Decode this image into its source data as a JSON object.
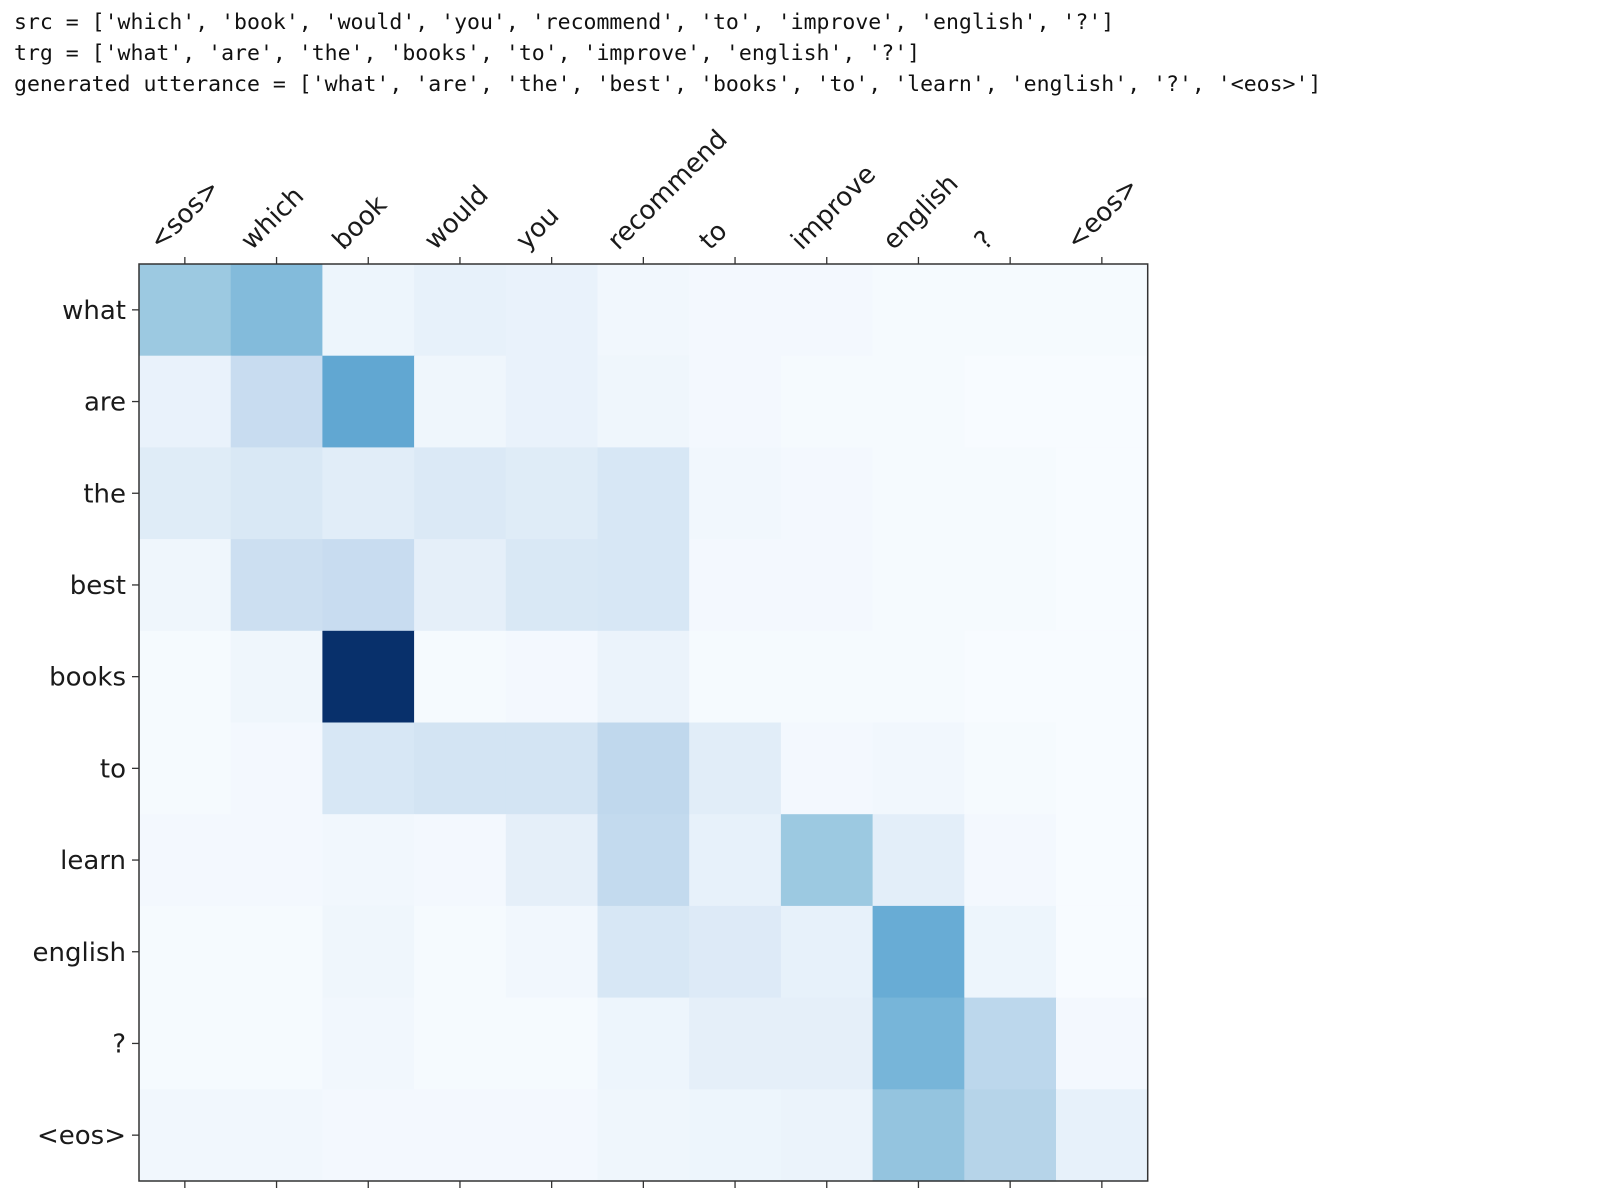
{
  "output": {
    "src_line": "src = ['which', 'book', 'would', 'you', 'recommend', 'to', 'improve', 'english', '?']",
    "trg_line": "trg = ['what', 'are', 'the', 'books', 'to', 'improve', 'english', '?']",
    "generated_line": "generated utterance = ['what', 'are', 'the', 'best', 'books', 'to', 'learn', 'english', '?', '<eos>']"
  },
  "chart_data": {
    "type": "heatmap",
    "colormap": "Blues",
    "x_tick_labels": [
      "<sos>",
      "which",
      "book",
      "would",
      "you",
      "recommend",
      "to",
      "improve",
      "english",
      "?",
      "<eos>"
    ],
    "y_tick_labels": [
      "what",
      "are",
      "the",
      "best",
      "books",
      "to",
      "learn",
      "english",
      "?",
      "<eos>"
    ],
    "x_axis_position": "top",
    "values": [
      [
        0.38,
        0.44,
        0.05,
        0.08,
        0.07,
        0.03,
        0.02,
        0.02,
        0.01,
        0.01,
        0.01
      ],
      [
        0.07,
        0.24,
        0.53,
        0.04,
        0.07,
        0.04,
        0.02,
        0.01,
        0.01,
        0.0,
        0.0
      ],
      [
        0.12,
        0.15,
        0.11,
        0.14,
        0.12,
        0.16,
        0.03,
        0.02,
        0.01,
        0.01,
        0.0
      ],
      [
        0.04,
        0.22,
        0.24,
        0.09,
        0.15,
        0.16,
        0.02,
        0.02,
        0.01,
        0.01,
        0.0
      ],
      [
        0.01,
        0.04,
        1.0,
        0.01,
        0.02,
        0.06,
        0.01,
        0.01,
        0.01,
        0.0,
        0.0
      ],
      [
        0.01,
        0.02,
        0.16,
        0.18,
        0.18,
        0.27,
        0.11,
        0.02,
        0.03,
        0.01,
        0.0
      ],
      [
        0.02,
        0.02,
        0.03,
        0.02,
        0.09,
        0.26,
        0.08,
        0.38,
        0.1,
        0.02,
        0.0
      ],
      [
        0.01,
        0.01,
        0.04,
        0.01,
        0.03,
        0.16,
        0.13,
        0.08,
        0.51,
        0.05,
        0.0
      ],
      [
        0.01,
        0.01,
        0.03,
        0.01,
        0.01,
        0.05,
        0.09,
        0.09,
        0.47,
        0.28,
        0.02
      ],
      [
        0.03,
        0.03,
        0.02,
        0.02,
        0.02,
        0.04,
        0.05,
        0.06,
        0.4,
        0.3,
        0.08
      ]
    ]
  }
}
